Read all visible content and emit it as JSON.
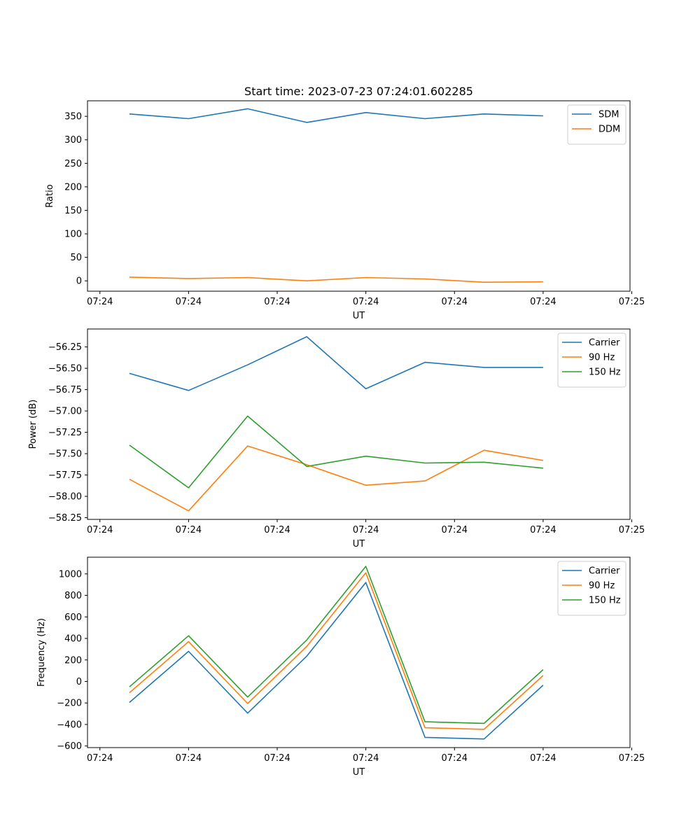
{
  "chart_data": [
    {
      "type": "line",
      "title": "Start time: 2023-07-23 07:24:01.602285",
      "xlabel": "UT",
      "ylabel": "Ratio",
      "x": [
        1,
        2,
        3,
        4,
        5,
        6,
        7,
        8
      ],
      "xlim": [
        0.29,
        9.47
      ],
      "x_ticks": [
        0.5,
        2,
        3.5,
        5,
        6.5,
        8,
        9.5
      ],
      "x_tick_labels": [
        "07:24",
        "07:24",
        "07:24",
        "07:24",
        "07:24",
        "07:24",
        "07:25"
      ],
      "ylim": [
        -22,
        383
      ],
      "y_ticks": [
        0,
        50,
        100,
        150,
        200,
        250,
        300,
        350
      ],
      "y_tick_labels": [
        "0",
        "50",
        "100",
        "150",
        "200",
        "250",
        "300",
        "350"
      ],
      "legend_position": "top-right",
      "series": [
        {
          "name": "SDM",
          "color": "#1f77b4",
          "values": [
            355,
            345,
            366,
            337,
            358,
            345,
            355,
            351
          ]
        },
        {
          "name": "DDM",
          "color": "#ff7f0e",
          "values": [
            8,
            5,
            7,
            0,
            7,
            4,
            -3,
            -2
          ]
        }
      ]
    },
    {
      "type": "line",
      "title": "",
      "xlabel": "UT",
      "ylabel": "Power (dB)",
      "x": [
        1,
        2,
        3,
        4,
        5,
        6,
        7,
        8
      ],
      "xlim": [
        0.29,
        9.47
      ],
      "x_ticks": [
        0.5,
        2,
        3.5,
        5,
        6.5,
        8,
        9.5
      ],
      "x_tick_labels": [
        "07:24",
        "07:24",
        "07:24",
        "07:24",
        "07:24",
        "07:24",
        "07:25"
      ],
      "ylim": [
        -58.27,
        -56.04
      ],
      "y_ticks": [
        -58.25,
        -58.0,
        -57.75,
        -57.5,
        -57.25,
        -57.0,
        -56.75,
        -56.5,
        -56.25
      ],
      "y_tick_labels": [
        "−58.25",
        "−58.00",
        "−57.75",
        "−57.50",
        "−57.25",
        "−57.00",
        "−56.75",
        "−56.50",
        "−56.25"
      ],
      "legend_position": "top-right",
      "series": [
        {
          "name": "Carrier",
          "color": "#1f77b4",
          "values": [
            -56.56,
            -56.76,
            -56.46,
            -56.13,
            -56.74,
            -56.43,
            -56.49,
            -56.49
          ]
        },
        {
          "name": "90 Hz",
          "color": "#ff7f0e",
          "values": [
            -57.8,
            -58.17,
            -57.41,
            -57.63,
            -57.87,
            -57.82,
            -57.46,
            -57.58
          ]
        },
        {
          "name": "150 Hz",
          "color": "#2ca02c",
          "values": [
            -57.4,
            -57.9,
            -57.06,
            -57.65,
            -57.53,
            -57.61,
            -57.6,
            -57.67
          ]
        }
      ]
    },
    {
      "type": "line",
      "title": "",
      "xlabel": "UT",
      "ylabel": "Frequency (Hz)",
      "x": [
        1,
        2,
        3,
        4,
        5,
        6,
        7,
        8
      ],
      "xlim": [
        0.29,
        9.47
      ],
      "x_ticks": [
        0.5,
        2,
        3.5,
        5,
        6.5,
        8,
        9.5
      ],
      "x_tick_labels": [
        "07:24",
        "07:24",
        "07:24",
        "07:24",
        "07:24",
        "07:24",
        "07:25"
      ],
      "ylim": [
        -615,
        1155
      ],
      "y_ticks": [
        -600,
        -400,
        -200,
        0,
        200,
        400,
        600,
        800,
        1000
      ],
      "y_tick_labels": [
        "−600",
        "−400",
        "−200",
        "0",
        "200",
        "400",
        "600",
        "800",
        "1000"
      ],
      "legend_position": "top-right",
      "series": [
        {
          "name": "Carrier",
          "color": "#1f77b4",
          "values": [
            -195,
            280,
            -295,
            235,
            920,
            -520,
            -535,
            -35
          ]
        },
        {
          "name": "90 Hz",
          "color": "#ff7f0e",
          "values": [
            -105,
            370,
            -205,
            325,
            1010,
            -430,
            -445,
            55
          ]
        },
        {
          "name": "150 Hz",
          "color": "#2ca02c",
          "values": [
            -50,
            425,
            -145,
            385,
            1070,
            -375,
            -390,
            110
          ]
        }
      ]
    }
  ]
}
